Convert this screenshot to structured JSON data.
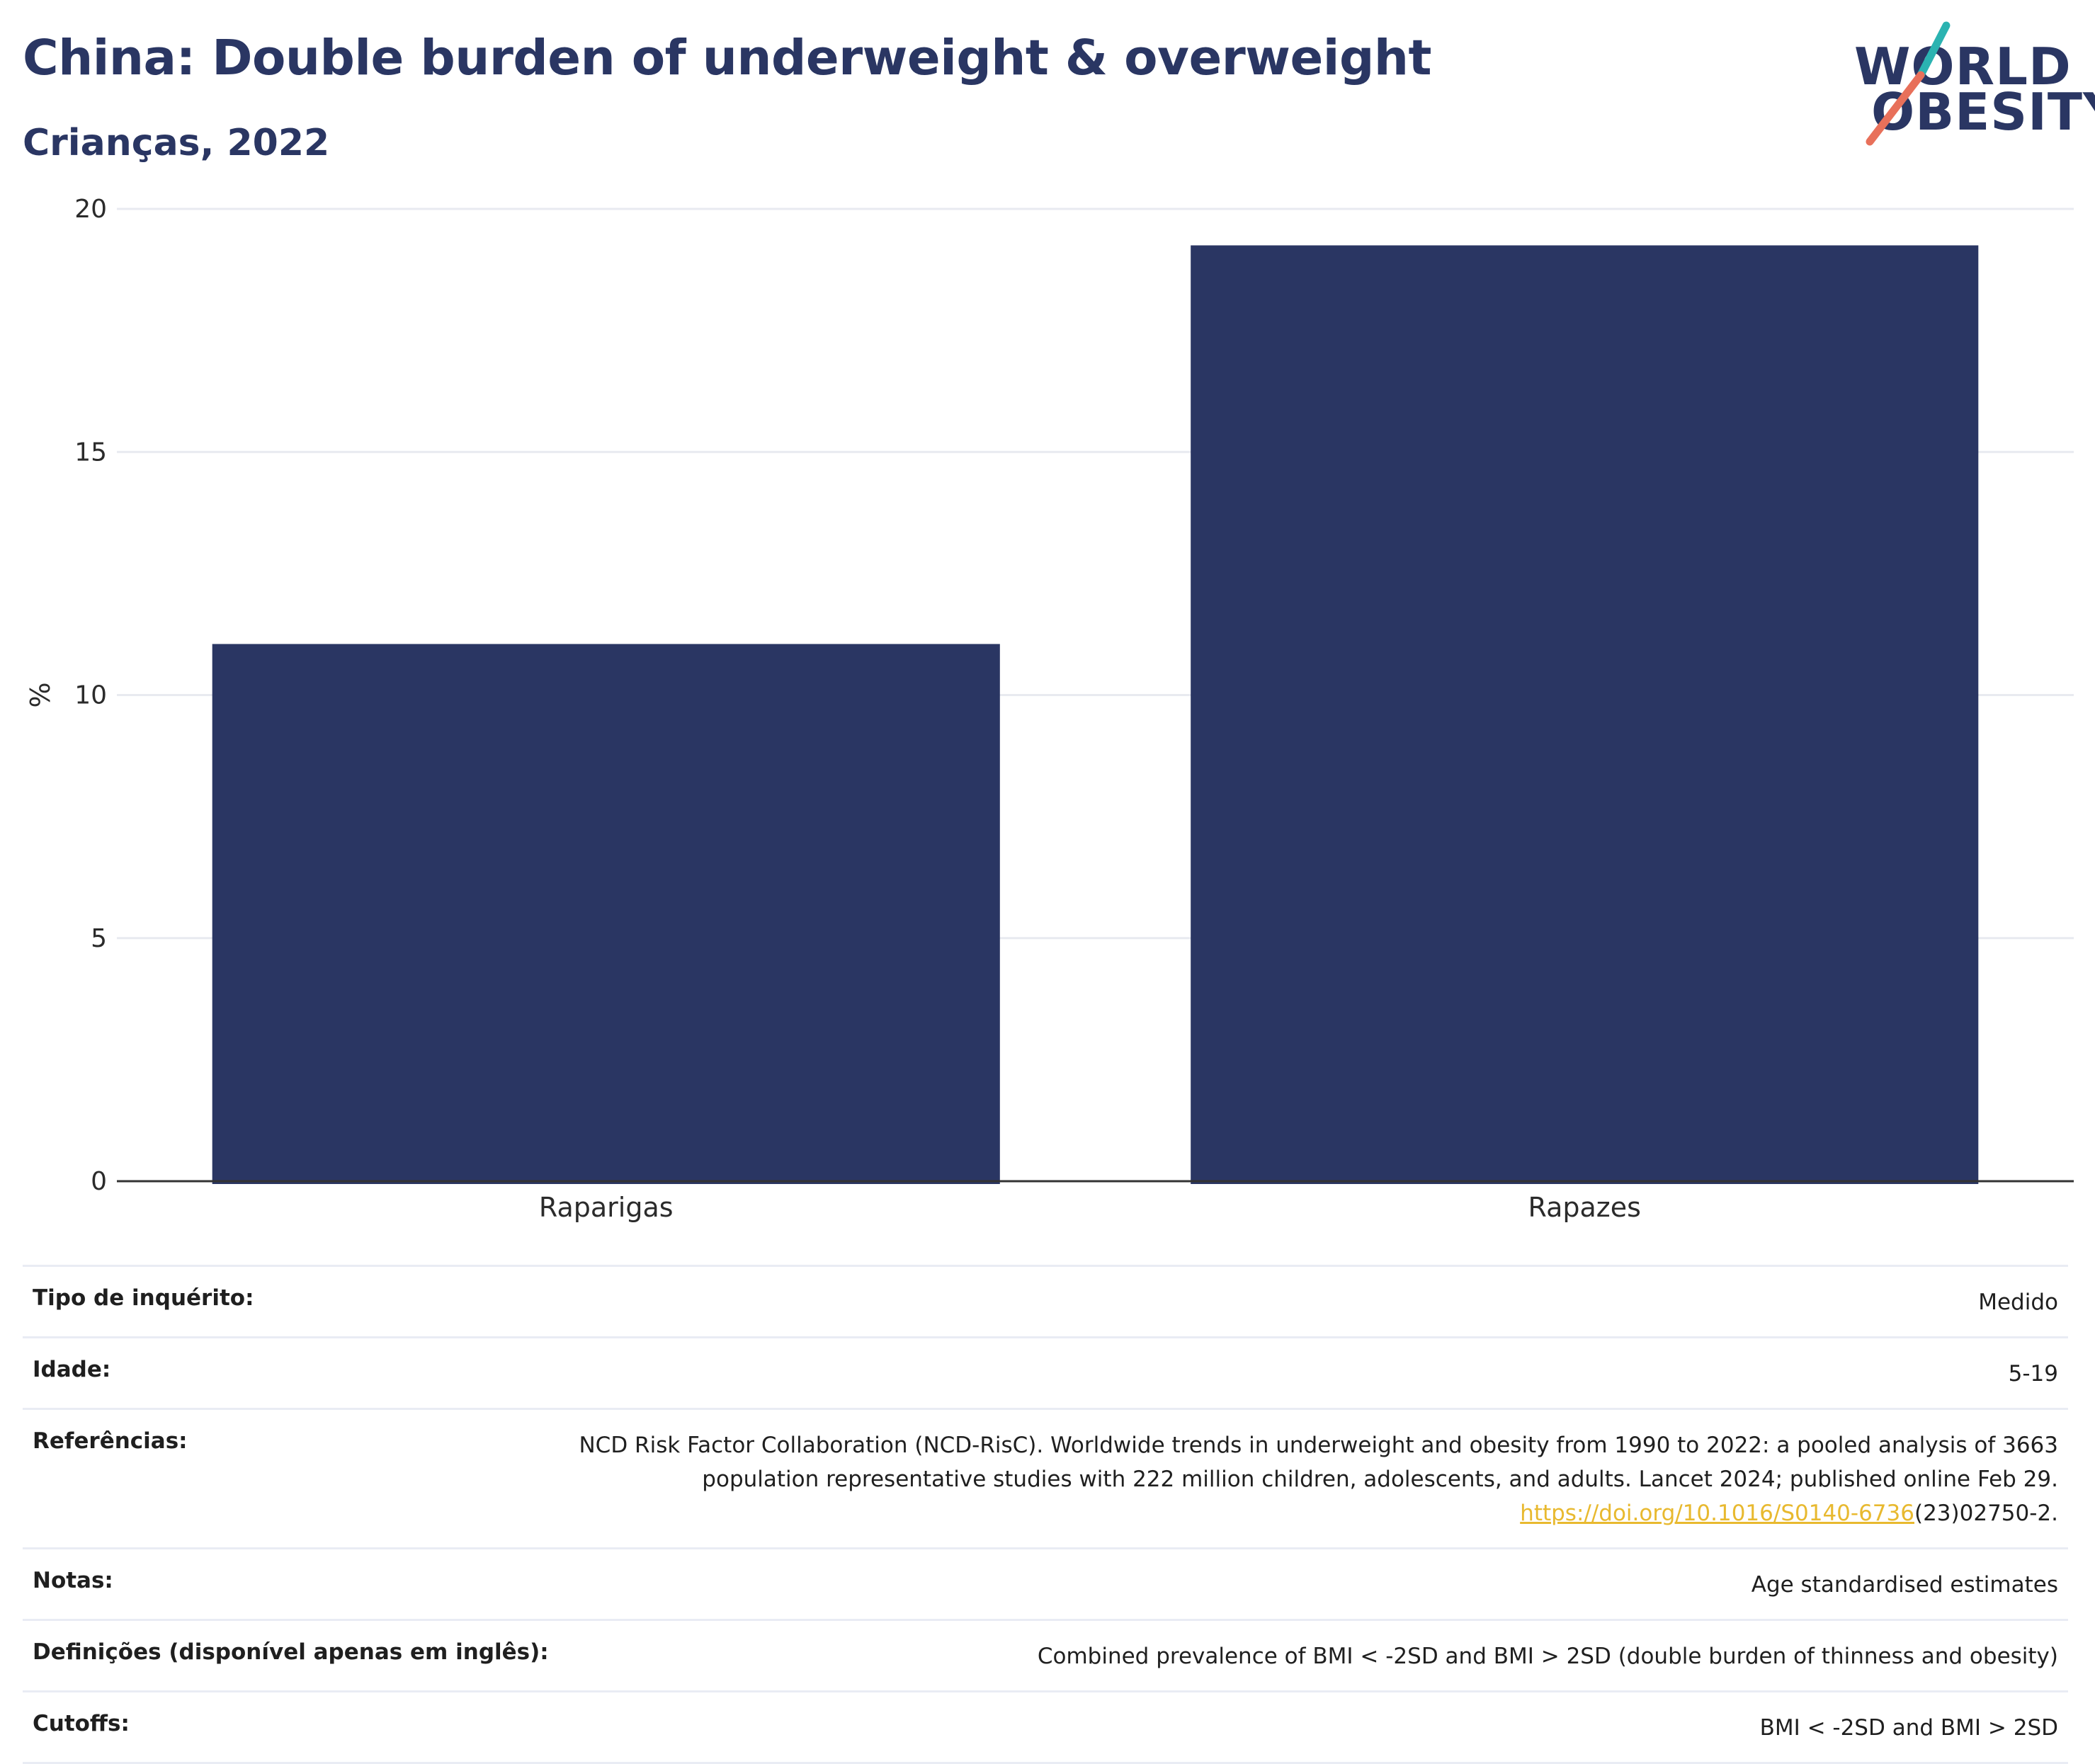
{
  "header": {
    "title": "China: Double burden of underweight & overweight",
    "subtitle": "Crianças, 2022"
  },
  "logo": {
    "line1": "WORLD",
    "line2": "OBESITY",
    "brand_colors": {
      "navy": "#2a3663",
      "teal": "#2bb3b1",
      "coral": "#e8705a"
    }
  },
  "chart_data": {
    "type": "bar",
    "categories": [
      "Raparigas",
      "Rapazes"
    ],
    "values": [
      11.05,
      19.25
    ],
    "ylabel": "%",
    "xlabel": "",
    "ylim": [
      0,
      20
    ],
    "yticks": [
      0,
      5,
      10,
      15,
      20
    ],
    "grid": true,
    "legend": "none",
    "bar_color": "#2a3663"
  },
  "meta": {
    "rows": [
      {
        "label": "Tipo de inquérito:",
        "value": "Medido"
      },
      {
        "label": "Idade:",
        "value": "5-19"
      },
      {
        "label": "Referências:",
        "value": "NCD Risk Factor Collaboration (NCD-RisC). Worldwide trends in underweight and obesity from 1990 to 2022: a pooled analysis of 3663 population representative studies with 222 million children, adolescents, and adults. Lancet 2024; published online Feb 29.",
        "link": "https://doi.org/10.1016/S0140-6736",
        "link_tail": "(23)02750-2."
      },
      {
        "label": "Notas:",
        "value": "Age standardised estimates"
      },
      {
        "label": "Definições (disponível apenas em inglês):",
        "value": "Combined prevalence of BMI < -2SD and BMI > 2SD (double burden of thinness and obesity)"
      },
      {
        "label": "Cutoffs:",
        "value": "BMI < -2SD and BMI > 2SD"
      }
    ]
  }
}
